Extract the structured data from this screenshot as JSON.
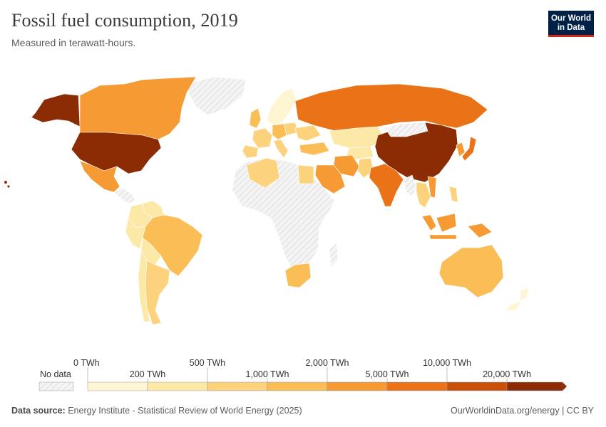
{
  "header": {
    "title": "Fossil fuel consumption, 2019",
    "subtitle": "Measured in terawatt-hours.",
    "logo_line1": "Our World",
    "logo_line2": "in Data"
  },
  "legend": {
    "no_data_label": "No data",
    "bins": [
      {
        "from": "0 TWh",
        "to": "200 TWh",
        "color": "#fef6d2"
      },
      {
        "from": "200 TWh",
        "to": "500 TWh",
        "color": "#fde9a7"
      },
      {
        "from": "500 TWh",
        "to": "1,000 TWh",
        "color": "#fdd27c"
      },
      {
        "from": "1,000 TWh",
        "to": "2,000 TWh",
        "color": "#fbbd55"
      },
      {
        "from": "2,000 TWh",
        "to": "5,000 TWh",
        "color": "#f69a33"
      },
      {
        "from": "5,000 TWh",
        "to": "10,000 TWh",
        "color": "#ea7317"
      },
      {
        "from": "10,000 TWh",
        "to": "20,000 TWh",
        "color": "#c9500b"
      },
      {
        "from": "20,000 TWh",
        "to": "",
        "color": "#8b2c05"
      }
    ],
    "tick_labels": [
      "0 TWh",
      "200 TWh",
      "500 TWh",
      "1,000 TWh",
      "2,000 TWh",
      "5,000 TWh",
      "10,000 TWh",
      "20,000 TWh"
    ]
  },
  "map": {
    "no_data_color": "#f1f1f1",
    "regions": [
      {
        "name": "United States",
        "color": "#8b2c05"
      },
      {
        "name": "China",
        "color": "#8b2c05"
      },
      {
        "name": "Russia",
        "color": "#ea7317"
      },
      {
        "name": "India",
        "color": "#ea7317"
      },
      {
        "name": "Japan",
        "color": "#ea7317"
      },
      {
        "name": "Canada",
        "color": "#f69a33"
      },
      {
        "name": "Alaska",
        "color": "#8b2c05"
      },
      {
        "name": "Mexico",
        "color": "#f69a33"
      },
      {
        "name": "Brazil",
        "color": "#fbbd55"
      },
      {
        "name": "Argentina",
        "color": "#fdd27c"
      },
      {
        "name": "Colombia",
        "color": "#fde9a7"
      },
      {
        "name": "Peru",
        "color": "#fde9a7"
      },
      {
        "name": "Chile",
        "color": "#fde9a7"
      },
      {
        "name": "Venezuela",
        "color": "#fde9a7"
      },
      {
        "name": "Algeria",
        "color": "#fdd27c"
      },
      {
        "name": "Egypt",
        "color": "#fdd27c"
      },
      {
        "name": "South Africa",
        "color": "#fbbd55"
      },
      {
        "name": "Saudi Arabia",
        "color": "#f69a33"
      },
      {
        "name": "Iran",
        "color": "#f69a33"
      },
      {
        "name": "Kazakhstan",
        "color": "#fde9a7"
      },
      {
        "name": "Turkey",
        "color": "#fbbd55"
      },
      {
        "name": "Germany",
        "color": "#fbbd55"
      },
      {
        "name": "France",
        "color": "#fdd27c"
      },
      {
        "name": "United Kingdom",
        "color": "#fbbd55"
      },
      {
        "name": "Spain",
        "color": "#fdd27c"
      },
      {
        "name": "Italy",
        "color": "#fdd27c"
      },
      {
        "name": "Poland",
        "color": "#fdd27c"
      },
      {
        "name": "Ukraine",
        "color": "#fdd27c"
      },
      {
        "name": "Scandinavia",
        "color": "#fef6d2"
      },
      {
        "name": "Pakistan",
        "color": "#fdd27c"
      },
      {
        "name": "Thailand",
        "color": "#fdd27c"
      },
      {
        "name": "Indonesia",
        "color": "#f69a33"
      },
      {
        "name": "Australia",
        "color": "#fbbd55"
      },
      {
        "name": "New Zealand",
        "color": "#fef6d2"
      },
      {
        "name": "South Korea",
        "color": "#f69a33"
      },
      {
        "name": "Greenland",
        "color": "#f1f1f1"
      },
      {
        "name": "Africa (no data)",
        "color": "#f1f1f1"
      }
    ]
  },
  "footer": {
    "source_label": "Data source:",
    "source_text": "Energy Institute - Statistical Review of World Energy (2025)",
    "url": "OurWorldinData.org/energy",
    "license": "| CC BY"
  }
}
